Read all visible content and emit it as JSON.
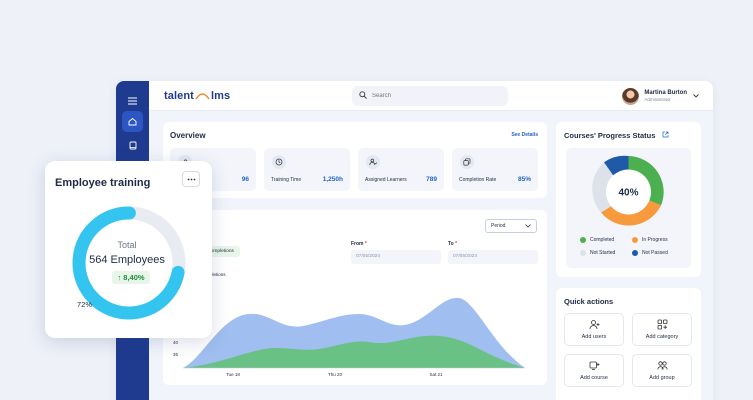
{
  "brand": {
    "name_a": "talent",
    "name_b": "lms"
  },
  "search": {
    "placeholder": "Search"
  },
  "user": {
    "name": "Martina Burton",
    "role": "Administrator"
  },
  "overview": {
    "title": "Overview",
    "link": "See Details",
    "stats": [
      {
        "label": "",
        "value": "96",
        "icon": "users-icon"
      },
      {
        "label": "Training Time",
        "value": "1,250h",
        "icon": "clock-icon"
      },
      {
        "label": "Assigned Learners",
        "value": "789",
        "icon": "learner-icon"
      },
      {
        "label": "Completion Rate",
        "value": "85%",
        "icon": "copy-icon"
      }
    ]
  },
  "progress": {
    "title": "Courses' Progress Status",
    "center_label": "40%",
    "legend": [
      {
        "label": "Completed",
        "color": "#4caf50"
      },
      {
        "label": "In Progress",
        "color": "#f79a3e"
      },
      {
        "label": "Not Started",
        "color": "#dde2ea"
      },
      {
        "label": "Not Passed",
        "color": "#1f5aa6"
      }
    ]
  },
  "activity": {
    "period_label": "Period",
    "chip_label": "ourse completions",
    "series_label": "ourse completions",
    "from_label": "From",
    "to_label": "To",
    "required_mark": "*",
    "from_value": "07/05/2024",
    "to_value": "07/05/2024"
  },
  "chart_data": {
    "type": "area",
    "x": [
      "Tue 18",
      "Thu 20",
      "Sat 21"
    ],
    "ytick_labels": [
      "40",
      "35"
    ],
    "series": [
      {
        "color": "#8fb3ec"
      },
      {
        "color": "#5cc26a"
      }
    ]
  },
  "quick_actions": {
    "title": "Quick actions",
    "items": [
      {
        "label": "Add users",
        "icon": "add-user-icon"
      },
      {
        "label": "Add category",
        "icon": "add-category-icon"
      },
      {
        "label": "Add course",
        "icon": "add-course-icon"
      },
      {
        "label": "Add group",
        "icon": "add-group-icon"
      }
    ]
  },
  "employee_training": {
    "title": "Employee training",
    "total_label": "Total",
    "count": "564 Employees",
    "change": "↑ 8,40%",
    "percent_label": "72%",
    "percent_value": 0.72
  }
}
